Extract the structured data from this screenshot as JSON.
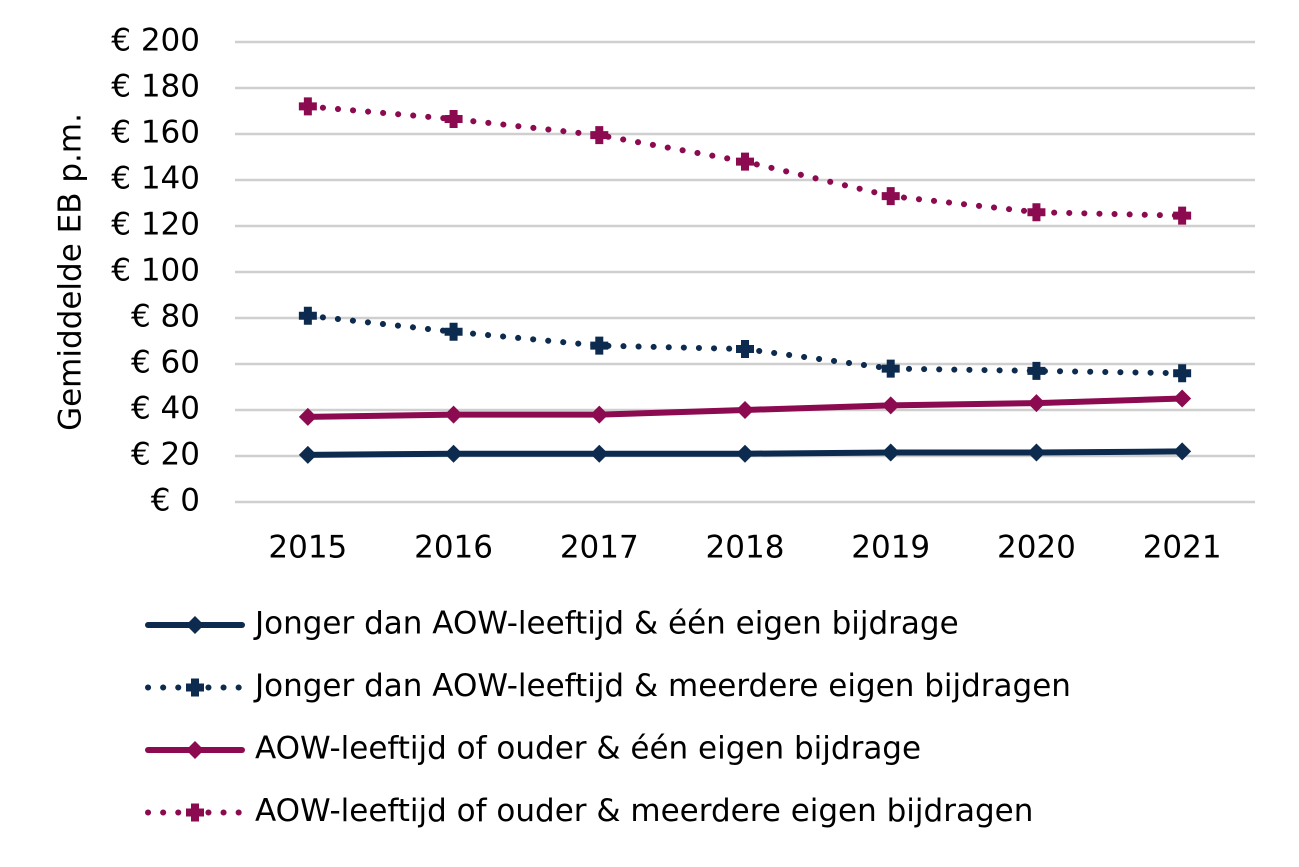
{
  "chart_data": {
    "type": "line",
    "y_label": "Gemiddelde EB p.m.",
    "categories": [
      "2015",
      "2016",
      "2017",
      "2018",
      "2019",
      "2020",
      "2021"
    ],
    "series": [
      {
        "name": "Jonger dan AOW-leeftijd & één eigen bijdrage",
        "color": "#0d2b4e",
        "style": "solid",
        "marker": "diamond",
        "values": [
          20.5,
          21,
          21,
          21,
          21.5,
          21.5,
          22
        ]
      },
      {
        "name": "Jonger dan AOW-leeftijd & meerdere eigen bijdragen",
        "color": "#0d2b4e",
        "style": "dotted",
        "marker": "plus",
        "values": [
          81,
          74,
          68,
          66.5,
          58,
          57,
          56
        ]
      },
      {
        "name": "AOW-leeftijd of ouder & één eigen bijdrage",
        "color": "#8b0a50",
        "style": "solid",
        "marker": "diamond",
        "values": [
          37,
          38,
          38,
          40,
          42,
          43,
          45
        ]
      },
      {
        "name": "AOW-leeftijd of ouder & meerdere eigen bijdragen",
        "color": "#8b0a50",
        "style": "dotted",
        "marker": "plus",
        "values": [
          172,
          166.5,
          159.5,
          148,
          133,
          126,
          124.5
        ]
      }
    ],
    "ylim": [
      0,
      200
    ],
    "yticks": [
      {
        "value": 0,
        "label": "€ 0"
      },
      {
        "value": 20,
        "label": "€ 20"
      },
      {
        "value": 40,
        "label": "€ 40"
      },
      {
        "value": 60,
        "label": "€ 60"
      },
      {
        "value": 80,
        "label": "€ 80"
      },
      {
        "value": 100,
        "label": "€ 100"
      },
      {
        "value": 120,
        "label": "€ 120"
      },
      {
        "value": 140,
        "label": "€ 140"
      },
      {
        "value": 160,
        "label": "€ 160"
      },
      {
        "value": 180,
        "label": "€ 180"
      },
      {
        "value": 200,
        "label": "€ 200"
      }
    ],
    "grid": true
  }
}
